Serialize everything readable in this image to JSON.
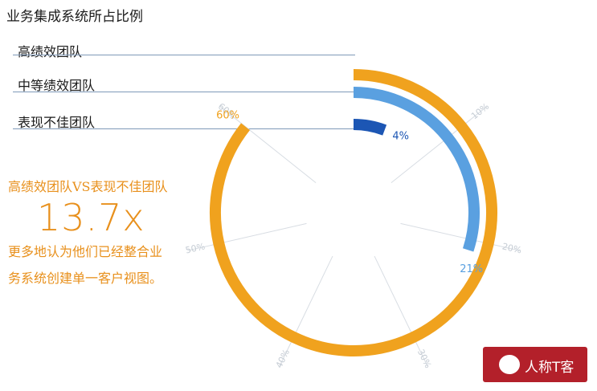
{
  "title": "业务集成系统所占比例",
  "chart_data": {
    "type": "radial-bar",
    "series": [
      {
        "name": "高绩效团队",
        "value": 60,
        "value_label": "60%",
        "color": "#f0a21e"
      },
      {
        "name": "中等绩效团队",
        "value": 21,
        "value_label": "21%",
        "color": "#5aa0e0"
      },
      {
        "name": "表现不佳团队",
        "value": 4,
        "value_label": "4%",
        "color": "#1c56b4"
      }
    ],
    "axis_max": 70,
    "ticks": [
      10,
      20,
      30,
      40,
      50,
      60
    ],
    "tick_labels": [
      "10%",
      "20%",
      "30%",
      "40%",
      "50%",
      "60%"
    ],
    "grid": true
  },
  "comparison": {
    "heading": "高绩效团队VS表现不佳团队",
    "ratio": "13.7x",
    "lines": [
      "更多地认为他们已经整合业",
      "务系统创建单一客户视图。"
    ]
  },
  "watermark": {
    "text": "人称T客",
    "icon": "wechat-icon"
  }
}
